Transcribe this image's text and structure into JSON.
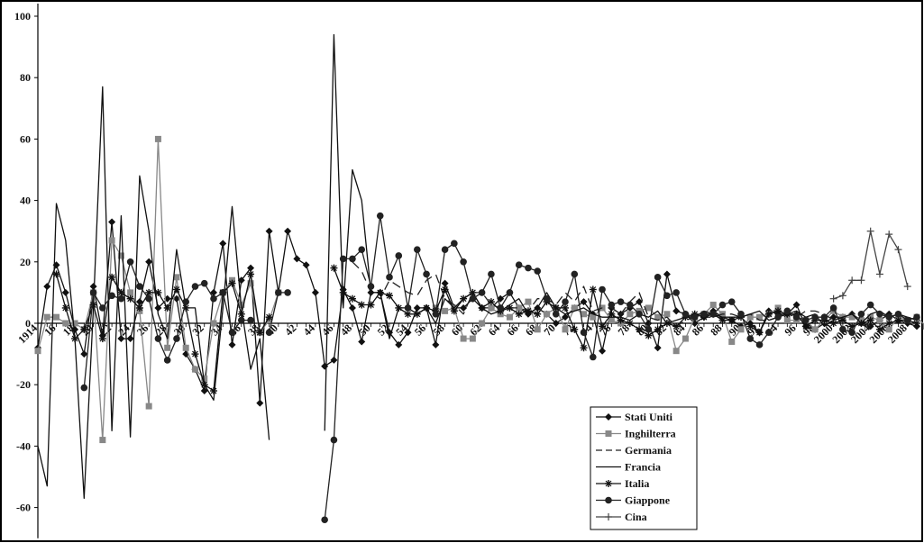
{
  "chart_data": {
    "type": "line",
    "title": "",
    "xlabel": "",
    "ylabel": "",
    "ylim": [
      -70,
      100
    ],
    "xlim": [
      1914,
      2009
    ],
    "y_ticks": [
      -60,
      -40,
      -20,
      0,
      20,
      40,
      60,
      80,
      100
    ],
    "y_tick_labels": [
      "-60",
      "-40",
      "-20",
      "0",
      "20",
      "40",
      "60",
      "80",
      "100"
    ],
    "x_tick_labels": [
      "1914",
      "16",
      "18",
      "20",
      "22",
      "24",
      "26",
      "28",
      "30",
      "32",
      "34",
      "36",
      "38",
      "40",
      "42",
      "44",
      "46",
      "48",
      "50",
      "52",
      "54",
      "56",
      "58",
      "60",
      "62",
      "64",
      "66",
      "68",
      "70",
      "72",
      "74",
      "76",
      "78",
      "80",
      "82",
      "84",
      "86",
      "88",
      "90",
      "92",
      "94",
      "96",
      "98",
      "2000",
      "2002",
      "2004",
      "2006",
      "2008"
    ],
    "x_tick_years": [
      1914,
      1916,
      1918,
      1920,
      1922,
      1924,
      1926,
      1928,
      1930,
      1932,
      1934,
      1936,
      1938,
      1940,
      1942,
      1944,
      1946,
      1948,
      1950,
      1952,
      1954,
      1956,
      1958,
      1960,
      1962,
      1964,
      1966,
      1968,
      1970,
      1972,
      1974,
      1976,
      1978,
      1980,
      1982,
      1984,
      1986,
      1988,
      1990,
      1992,
      1994,
      1996,
      1998,
      2000,
      2002,
      2004,
      2006,
      2008
    ],
    "grid": false,
    "legend_position": "bottom-right",
    "series": [
      {
        "name": "Stati Uniti",
        "color": "#111111",
        "marker": "diamond",
        "dash": "",
        "start": 1914,
        "values": [
          -8,
          12,
          19,
          10,
          -2,
          -10,
          12,
          -4,
          33,
          -5,
          -5,
          7,
          20,
          5,
          8,
          8,
          -10,
          -15,
          -22,
          10,
          26,
          -7,
          14,
          18,
          -26,
          30,
          10,
          30,
          21,
          19,
          10,
          -14,
          -12,
          11,
          5,
          -6,
          10,
          10,
          -3,
          -7,
          -3,
          5,
          5,
          -7,
          13,
          5,
          5,
          8,
          5,
          5,
          8,
          10,
          5,
          3,
          5,
          3,
          0,
          2,
          5,
          7,
          3,
          -9,
          5,
          3,
          5,
          7,
          0,
          -8,
          16,
          4,
          3,
          0,
          2,
          4,
          2,
          1,
          -1,
          0,
          -3,
          4,
          3,
          3,
          6,
          -1,
          -2,
          0,
          2,
          2,
          3,
          0,
          -1,
          1,
          3,
          1,
          0,
          -1
        ]
      },
      {
        "name": "Inghilterra",
        "color": "#888888",
        "marker": "square",
        "dash": "",
        "start": 1914,
        "values": [
          -9,
          2,
          2,
          0,
          0,
          -2,
          10,
          -38,
          27,
          22,
          10,
          4,
          -27,
          60,
          -8,
          15,
          -8,
          -15,
          -18,
          0,
          10,
          14,
          6,
          13,
          -3,
          1,
          10,
          null,
          null,
          null,
          null,
          null,
          null,
          null,
          null,
          null,
          null,
          null,
          null,
          null,
          null,
          null,
          null,
          5,
          4,
          5,
          -5,
          -5,
          0,
          5,
          3,
          2,
          5,
          7,
          -2,
          3,
          5,
          -2,
          5,
          3,
          2,
          5,
          1,
          0,
          3,
          4,
          5,
          2,
          3,
          -9,
          -5,
          2,
          3,
          6,
          3,
          -6,
          -2,
          2,
          2,
          3,
          5,
          1,
          1,
          1,
          -2,
          1,
          4,
          2,
          2,
          1,
          2,
          1,
          -2,
          2,
          1,
          2,
          -1,
          1
        ]
      },
      {
        "name": "Germania",
        "color": "#222222",
        "marker": "none",
        "dash": "10,6",
        "start": 1914,
        "values": [
          null,
          null,
          null,
          null,
          null,
          null,
          null,
          null,
          null,
          null,
          null,
          null,
          null,
          null,
          null,
          null,
          null,
          null,
          null,
          null,
          null,
          null,
          null,
          null,
          null,
          null,
          null,
          null,
          null,
          null,
          null,
          null,
          null,
          null,
          20,
          17,
          10,
          8,
          14,
          12,
          10,
          9,
          14,
          16,
          8,
          6,
          3,
          10,
          10,
          6,
          5,
          5,
          5,
          4,
          8,
          8,
          6,
          10,
          7,
          12,
          4,
          5,
          5,
          3,
          7,
          10,
          2,
          1,
          2,
          -1,
          1,
          2,
          2,
          2,
          3,
          3,
          2,
          3,
          1,
          1,
          2,
          3,
          2,
          4,
          4,
          3,
          1,
          2,
          3,
          1,
          -1,
          -1,
          2,
          3,
          1,
          0
        ]
      },
      {
        "name": "Francia",
        "color": "#111111",
        "marker": "none",
        "dash": "",
        "start": 1914,
        "values": [
          -40,
          -53,
          39,
          27,
          -5,
          -57,
          5,
          77,
          -35,
          35,
          -37,
          48,
          30,
          3,
          -5,
          24,
          5,
          5,
          -20,
          -25,
          5,
          38,
          5,
          -15,
          -5,
          -38,
          null,
          null,
          null,
          null,
          null,
          -35,
          94,
          5,
          50,
          40,
          10,
          10,
          -5,
          5,
          5,
          3,
          5,
          0,
          8,
          5,
          8,
          10,
          5,
          3,
          4,
          6,
          8,
          3,
          5,
          10,
          5,
          3,
          4,
          5,
          3,
          2,
          2,
          2,
          1,
          3,
          2,
          4,
          0,
          1,
          2,
          2,
          4,
          3,
          2,
          2,
          2,
          3,
          4,
          1,
          2,
          3,
          4,
          2,
          3,
          -1,
          1,
          2,
          3,
          0,
          3,
          4,
          2,
          3,
          2,
          1
        ]
      },
      {
        "name": "Italia",
        "color": "#111111",
        "marker": "star",
        "dash": "",
        "start": 1914,
        "values": [
          null,
          null,
          16,
          5,
          -5,
          -2,
          6,
          -5,
          15,
          10,
          8,
          5,
          10,
          10,
          5,
          11,
          5,
          -10,
          -20,
          -22,
          10,
          13,
          3,
          16,
          -3,
          2,
          null,
          null,
          null,
          null,
          null,
          null,
          18,
          10,
          8,
          6,
          6,
          10,
          9,
          5,
          3,
          3,
          5,
          4,
          11,
          4,
          8,
          10,
          5,
          7,
          4,
          5,
          3,
          4,
          3,
          7,
          5,
          5,
          -2,
          -8,
          11,
          -1,
          3,
          1,
          0,
          -2,
          -4,
          -2,
          0,
          -1,
          2,
          3,
          2,
          3,
          1,
          1,
          2,
          -1,
          -3,
          3,
          4,
          3,
          3,
          -1,
          1,
          1,
          0,
          1,
          -1,
          0,
          1,
          -2,
          0,
          1,
          1,
          0
        ]
      },
      {
        "name": "Giappone",
        "color": "#222222",
        "marker": "circle",
        "dash": "",
        "start": 1914,
        "values": [
          null,
          null,
          null,
          null,
          null,
          -21,
          10,
          5,
          9,
          8,
          20,
          12,
          8,
          -5,
          -12,
          -5,
          7,
          12,
          13,
          8,
          10,
          -3,
          1,
          1,
          null,
          -3,
          10,
          10,
          null,
          null,
          null,
          -64,
          -38,
          21,
          21,
          24,
          12,
          35,
          15,
          22,
          5,
          24,
          16,
          3,
          24,
          26,
          20,
          8,
          10,
          16,
          5,
          10,
          19,
          18,
          17,
          8,
          3,
          7,
          16,
          -3,
          -11,
          11,
          6,
          7,
          6,
          3,
          -2,
          15,
          9,
          10,
          3,
          2,
          3,
          3,
          6,
          7,
          3,
          -5,
          -7,
          -3,
          2,
          4,
          2,
          1,
          2,
          2,
          5,
          -2,
          -3,
          3,
          6,
          3,
          2,
          3,
          1,
          2
        ]
      },
      {
        "name": "Cina",
        "color": "#444444",
        "marker": "plus",
        "dash": "",
        "start": 1914,
        "values": [
          null,
          null,
          null,
          null,
          null,
          null,
          null,
          null,
          null,
          null,
          null,
          null,
          null,
          null,
          null,
          null,
          null,
          null,
          null,
          null,
          null,
          null,
          null,
          null,
          null,
          null,
          null,
          null,
          null,
          null,
          null,
          null,
          null,
          null,
          null,
          null,
          null,
          null,
          null,
          null,
          null,
          null,
          null,
          null,
          null,
          null,
          null,
          null,
          null,
          null,
          null,
          null,
          null,
          null,
          null,
          null,
          null,
          null,
          null,
          null,
          null,
          null,
          null,
          null,
          null,
          null,
          null,
          null,
          null,
          null,
          null,
          null,
          null,
          null,
          null,
          null,
          null,
          null,
          null,
          null,
          null,
          null,
          null,
          null,
          null,
          null,
          8,
          9,
          14,
          14,
          30,
          16,
          29,
          24,
          12,
          null
        ]
      }
    ]
  }
}
